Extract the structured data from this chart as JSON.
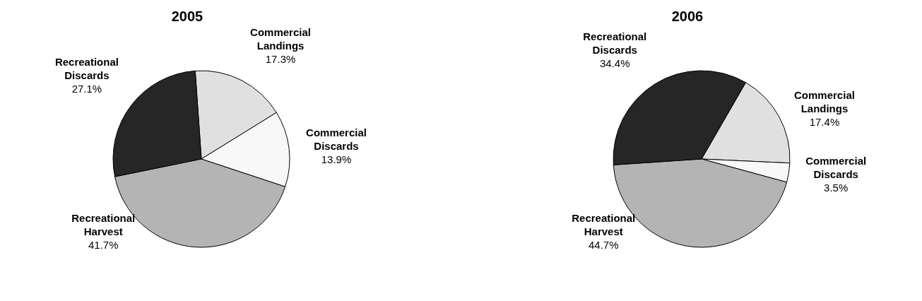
{
  "chart_data": [
    {
      "type": "pie",
      "title": "2005",
      "categories": [
        "Commercial Landings",
        "Commercial Discards",
        "Recreational Harvest",
        "Recreational Discards"
      ],
      "values": [
        17.3,
        13.9,
        41.7,
        27.1
      ],
      "colors": [
        "#e0e0e0",
        "#f8f8f8",
        "#b4b4b4",
        "#262626"
      ],
      "value_labels": [
        "17.3%",
        "13.9%",
        "41.7%",
        "27.1%"
      ]
    },
    {
      "type": "pie",
      "title": "2006",
      "categories": [
        "Commercial Landings",
        "Commercial Discards",
        "Recreational Harvest",
        "Recreational Discards"
      ],
      "values": [
        17.4,
        3.5,
        44.7,
        34.4
      ],
      "colors": [
        "#e0e0e0",
        "#f8f8f8",
        "#b4b4b4",
        "#262626"
      ],
      "value_labels": [
        "17.4%",
        "3.5%",
        "44.7%",
        "34.4%"
      ]
    }
  ]
}
